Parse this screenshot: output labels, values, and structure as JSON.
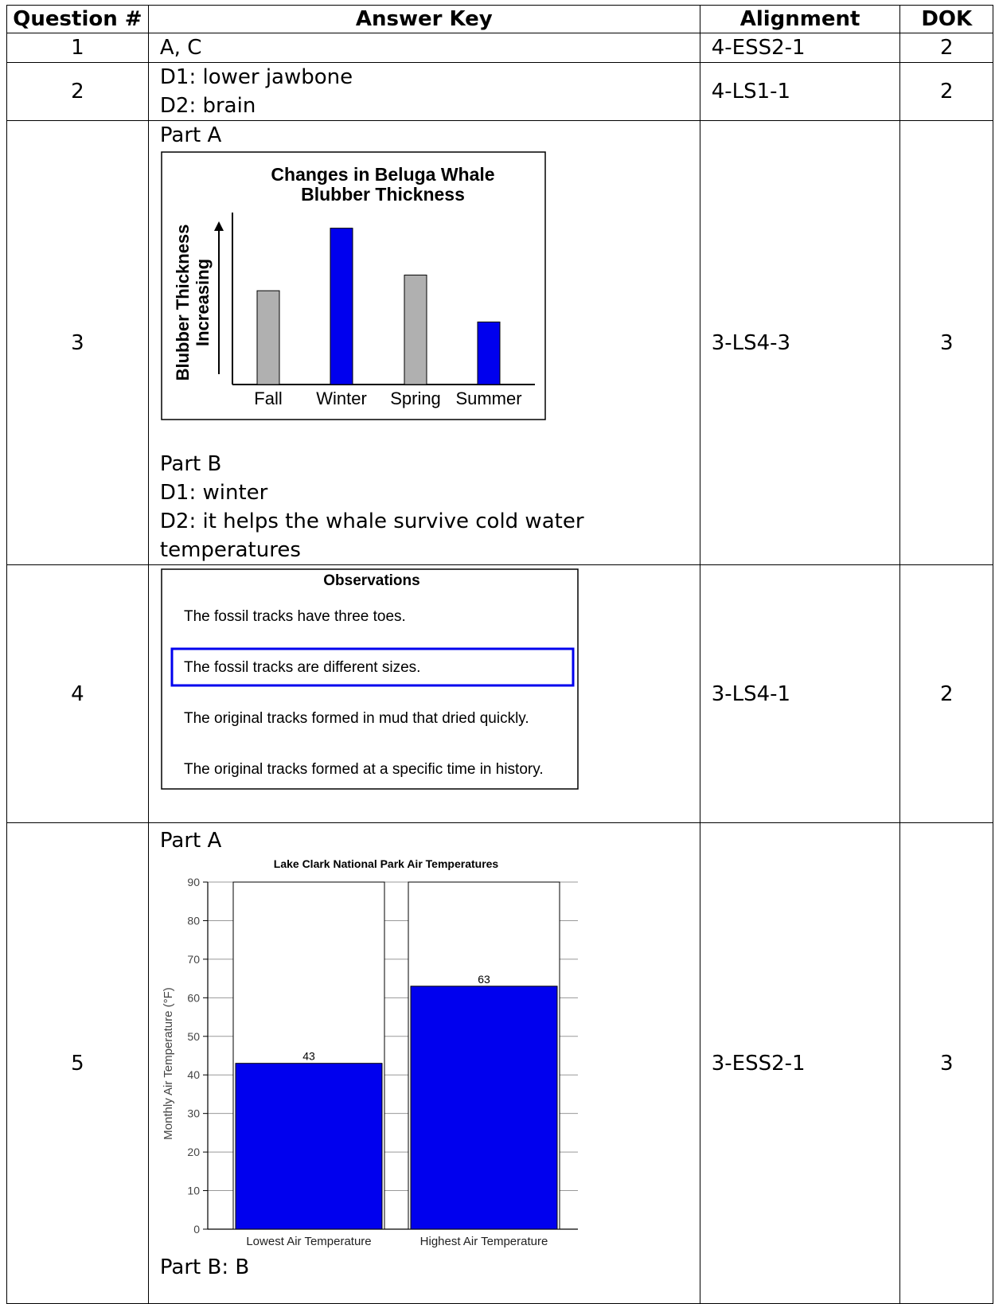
{
  "headers": {
    "question": "Question #",
    "answer": "Answer Key",
    "alignment": "Alignment",
    "dok": "DOK"
  },
  "rows": [
    {
      "num": "1",
      "lines": [
        "A, C"
      ],
      "alignment": "4-ESS2-1",
      "dok": "2"
    },
    {
      "num": "2",
      "lines": [
        "D1:  lower jawbone",
        "D2:  brain"
      ],
      "alignment": "4-LS1-1",
      "dok": "2"
    },
    {
      "num": "3",
      "partA": "Part A",
      "partB": "Part B",
      "partB_lines": [
        "D1:  winter",
        "D2:  it helps the whale survive cold water temperatures"
      ],
      "alignment": "3-LS4-3",
      "dok": "3"
    },
    {
      "num": "4",
      "alignment": "3-LS4-1",
      "dok": "2"
    },
    {
      "num": "5",
      "partA": "Part A",
      "partB": "Part B:  B",
      "alignment": "3-ESS2-1",
      "dok": "3"
    }
  ],
  "observations": {
    "title": "Observations",
    "items": [
      "The fossil tracks have three toes.",
      "The fossil tracks are different sizes.",
      "The original tracks formed in mud that dried quickly.",
      "The original tracks formed at a specific time in history."
    ],
    "selected_index": 1,
    "highlight_color": "#0000ee"
  },
  "chart_data": [
    {
      "type": "bar",
      "title": "Changes in Beluga Whale Blubber Thickness",
      "title_lines": [
        "Changes in Beluga Whale",
        "Blubber Thickness"
      ],
      "ylabel_lines": [
        "Blubber Thickness",
        "Increasing"
      ],
      "categories": [
        "Fall",
        "Winter",
        "Spring",
        "Summer"
      ],
      "values": [
        0.6,
        1.0,
        0.7,
        0.4
      ],
      "colors": [
        "#b0b0b0",
        "#0000ee",
        "#b0b0b0",
        "#0000ee"
      ],
      "ylim": [
        0,
        1.1
      ]
    },
    {
      "type": "bar",
      "title": "Lake Clark National Park Air Temperatures",
      "ylabel": "Monthly Air Temperature (°F)",
      "categories": [
        "Lowest Air Temperature",
        "Highest Air Temperature"
      ],
      "values": [
        43,
        63
      ],
      "data_labels": [
        "43",
        "63"
      ],
      "yticks": [
        "0",
        "10",
        "20",
        "30",
        "40",
        "50",
        "60",
        "70",
        "80",
        "90"
      ],
      "ylim": [
        0,
        90
      ],
      "color": "#0000ee",
      "grid": true
    }
  ]
}
